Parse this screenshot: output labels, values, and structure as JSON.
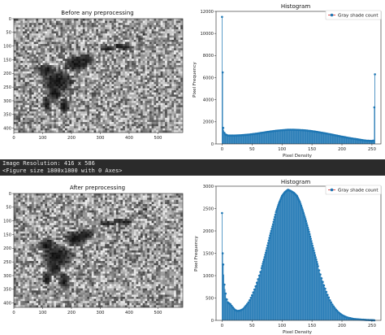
{
  "console": {
    "line1": "Image Resolution: 416 x 586",
    "line2": "<Figure size 1800x1800 with 0 Axes>"
  },
  "colors": {
    "bar": "#1f77b4",
    "stem": "#1f77b4",
    "legend_marker": "#d62728"
  },
  "chart_data": [
    {
      "type": "image",
      "title": "Before any preprocessing",
      "x_ticks": [
        "0",
        "100",
        "200",
        "300",
        "400",
        "500"
      ],
      "y_ticks": [
        "0",
        "50",
        "100",
        "150",
        "200",
        "250",
        "300",
        "350",
        "400"
      ],
      "xlim": [
        0,
        586
      ],
      "ylim": [
        416,
        0
      ]
    },
    {
      "type": "bar",
      "title": "Histogram",
      "xlabel": "Pixel Density",
      "ylabel": "Pixel Frequency",
      "legend": "Gray shade count",
      "legend_position": "top-right",
      "x_ticks": [
        "0",
        "50",
        "100",
        "150",
        "200",
        "250"
      ],
      "y_ticks": [
        "0",
        "2000",
        "4000",
        "6000",
        "8000",
        "10000",
        "12000"
      ],
      "xlim": [
        -10,
        265
      ],
      "ylim": [
        0,
        12000
      ],
      "series": [
        {
          "name": "Gray shade count",
          "points": [
            [
              0,
              11500
            ],
            [
              2,
              1450
            ],
            [
              4,
              1000
            ],
            [
              6,
              850
            ],
            [
              10,
              760
            ],
            [
              20,
              760
            ],
            [
              30,
              780
            ],
            [
              40,
              820
            ],
            [
              50,
              880
            ],
            [
              60,
              950
            ],
            [
              70,
              1040
            ],
            [
              80,
              1120
            ],
            [
              90,
              1190
            ],
            [
              100,
              1240
            ],
            [
              110,
              1280
            ],
            [
              120,
              1280
            ],
            [
              130,
              1260
            ],
            [
              140,
              1220
            ],
            [
              150,
              1160
            ],
            [
              160,
              1070
            ],
            [
              170,
              980
            ],
            [
              180,
              880
            ],
            [
              190,
              770
            ],
            [
              200,
              660
            ],
            [
              210,
              560
            ],
            [
              220,
              470
            ],
            [
              230,
              380
            ],
            [
              240,
              300
            ],
            [
              250,
              270
            ],
            [
              253,
              320
            ],
            [
              255,
              6300
            ]
          ]
        }
      ]
    },
    {
      "type": "image",
      "title": "After preprocessing",
      "x_ticks": [
        "0",
        "100",
        "200",
        "300",
        "400",
        "500"
      ],
      "y_ticks": [
        "0",
        "50",
        "100",
        "150",
        "200",
        "250",
        "300",
        "350",
        "400"
      ],
      "xlim": [
        0,
        586
      ],
      "ylim": [
        416,
        0
      ]
    },
    {
      "type": "bar",
      "title": "Histogram",
      "xlabel": "Pixel Density",
      "ylabel": "Pixel Frequency",
      "legend": "Gray shade count",
      "legend_position": "top-right",
      "x_ticks": [
        "0",
        "50",
        "100",
        "150",
        "200",
        "250"
      ],
      "y_ticks": [
        "0",
        "500",
        "1000",
        "1500",
        "2000",
        "2500",
        "3000"
      ],
      "xlim": [
        -10,
        265
      ],
      "ylim": [
        0,
        3000
      ],
      "series": [
        {
          "name": "Gray shade count",
          "points": [
            [
              0,
              2400
            ],
            [
              1,
              1500
            ],
            [
              2,
              1250
            ],
            [
              4,
              800
            ],
            [
              7,
              500
            ],
            [
              10,
              400
            ],
            [
              14,
              360
            ],
            [
              18,
              290
            ],
            [
              22,
              230
            ],
            [
              26,
              210
            ],
            [
              30,
              220
            ],
            [
              35,
              250
            ],
            [
              40,
              330
            ],
            [
              45,
              420
            ],
            [
              50,
              560
            ],
            [
              55,
              720
            ],
            [
              60,
              920
            ],
            [
              65,
              1120
            ],
            [
              70,
              1360
            ],
            [
              75,
              1620
            ],
            [
              80,
              1900
            ],
            [
              85,
              2150
            ],
            [
              90,
              2420
            ],
            [
              95,
              2620
            ],
            [
              100,
              2780
            ],
            [
              105,
              2870
            ],
            [
              110,
              2920
            ],
            [
              115,
              2890
            ],
            [
              120,
              2850
            ],
            [
              125,
              2780
            ],
            [
              130,
              2640
            ],
            [
              135,
              2440
            ],
            [
              140,
              2220
            ],
            [
              145,
              1980
            ],
            [
              150,
              1720
            ],
            [
              155,
              1460
            ],
            [
              160,
              1210
            ],
            [
              165,
              980
            ],
            [
              170,
              780
            ],
            [
              175,
              600
            ],
            [
              180,
              450
            ],
            [
              185,
              330
            ],
            [
              190,
              240
            ],
            [
              195,
              170
            ],
            [
              200,
              120
            ],
            [
              205,
              85
            ],
            [
              210,
              60
            ],
            [
              220,
              30
            ],
            [
              230,
              20
            ],
            [
              240,
              10
            ],
            [
              250,
              5
            ],
            [
              255,
              0
            ]
          ]
        }
      ]
    }
  ]
}
